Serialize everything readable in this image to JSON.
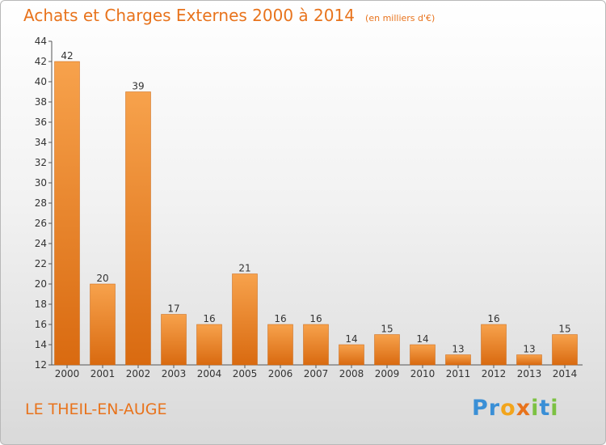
{
  "title": "Achats et Charges Externes 2000 à 2014",
  "subtitle": "(en milliers d'€)",
  "commune": "LE THEIL-EN-AUGE",
  "logo": {
    "letters": [
      {
        "char": "P",
        "color": "#3a8fd6"
      },
      {
        "char": "r",
        "color": "#3a8fd6"
      },
      {
        "char": "o",
        "color": "#f2a51c"
      },
      {
        "char": "x",
        "color": "#e8731c"
      },
      {
        "char": "i",
        "color": "#7cc142"
      },
      {
        "char": "t",
        "color": "#3a8fd6"
      },
      {
        "char": "i",
        "color": "#7cc142"
      }
    ]
  },
  "colors": {
    "accent": "#e8731c",
    "bar_light": "#f7a24c",
    "bar_dark": "#d96a10",
    "axis": "#555555",
    "grid": "#c8c8c8"
  },
  "chart_data": {
    "type": "bar",
    "categories": [
      "2000",
      "2001",
      "2002",
      "2003",
      "2004",
      "2005",
      "2006",
      "2007",
      "2008",
      "2009",
      "2010",
      "2011",
      "2012",
      "2013",
      "2014"
    ],
    "values": [
      42,
      20,
      39,
      17,
      16,
      21,
      16,
      16,
      14,
      15,
      14,
      13,
      16,
      13,
      15
    ],
    "ylim": [
      12,
      44
    ],
    "yticks": [
      12,
      14,
      16,
      18,
      20,
      22,
      24,
      26,
      28,
      30,
      32,
      34,
      36,
      38,
      40,
      42,
      44
    ],
    "data_labels": true,
    "grid": false
  }
}
